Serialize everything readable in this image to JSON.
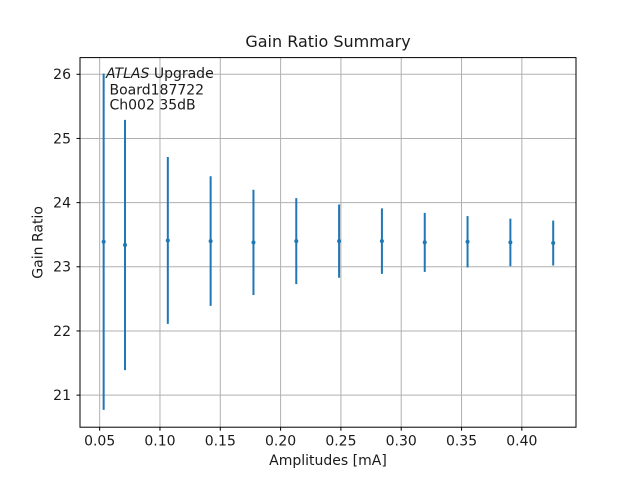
{
  "chart_data": {
    "type": "scatter",
    "title": "Gain Ratio Summary",
    "xlabel": "Amplitudes [mA]",
    "ylabel": "Gain Ratio",
    "annotation": {
      "line1_italic": "ATLAS",
      "line1_rest": " Upgrade",
      "line2": "Board187722",
      "line3": "Ch002 35dB"
    },
    "x": [
      0.0533,
      0.071,
      0.1065,
      0.142,
      0.1775,
      0.213,
      0.2485,
      0.284,
      0.3195,
      0.355,
      0.3905,
      0.426
    ],
    "y": [
      23.39,
      23.34,
      23.41,
      23.4,
      23.38,
      23.4,
      23.4,
      23.4,
      23.38,
      23.39,
      23.38,
      23.37
    ],
    "yerr": [
      2.62,
      1.95,
      1.3,
      1.01,
      0.82,
      0.67,
      0.57,
      0.51,
      0.46,
      0.4,
      0.37,
      0.35
    ],
    "xtick_labels": [
      "0.05",
      "0.10",
      "0.15",
      "0.20",
      "0.25",
      "0.30",
      "0.35",
      "0.40"
    ],
    "xtick_values": [
      0.05,
      0.1,
      0.15,
      0.2,
      0.25,
      0.3,
      0.35,
      0.4
    ],
    "ytick_labels": [
      "21",
      "22",
      "23",
      "24",
      "25",
      "26"
    ],
    "ytick_values": [
      21,
      22,
      23,
      24,
      25,
      26
    ],
    "xlim": [
      0.0337,
      0.4449
    ],
    "ylim": [
      20.5,
      26.26
    ],
    "grid": true,
    "legend": false,
    "errorbar_caps": false,
    "series_color": "#1f77b4",
    "grid_color": "#b0b0b0",
    "axis_color": "#000000",
    "text_color": "#1a1a1a"
  }
}
